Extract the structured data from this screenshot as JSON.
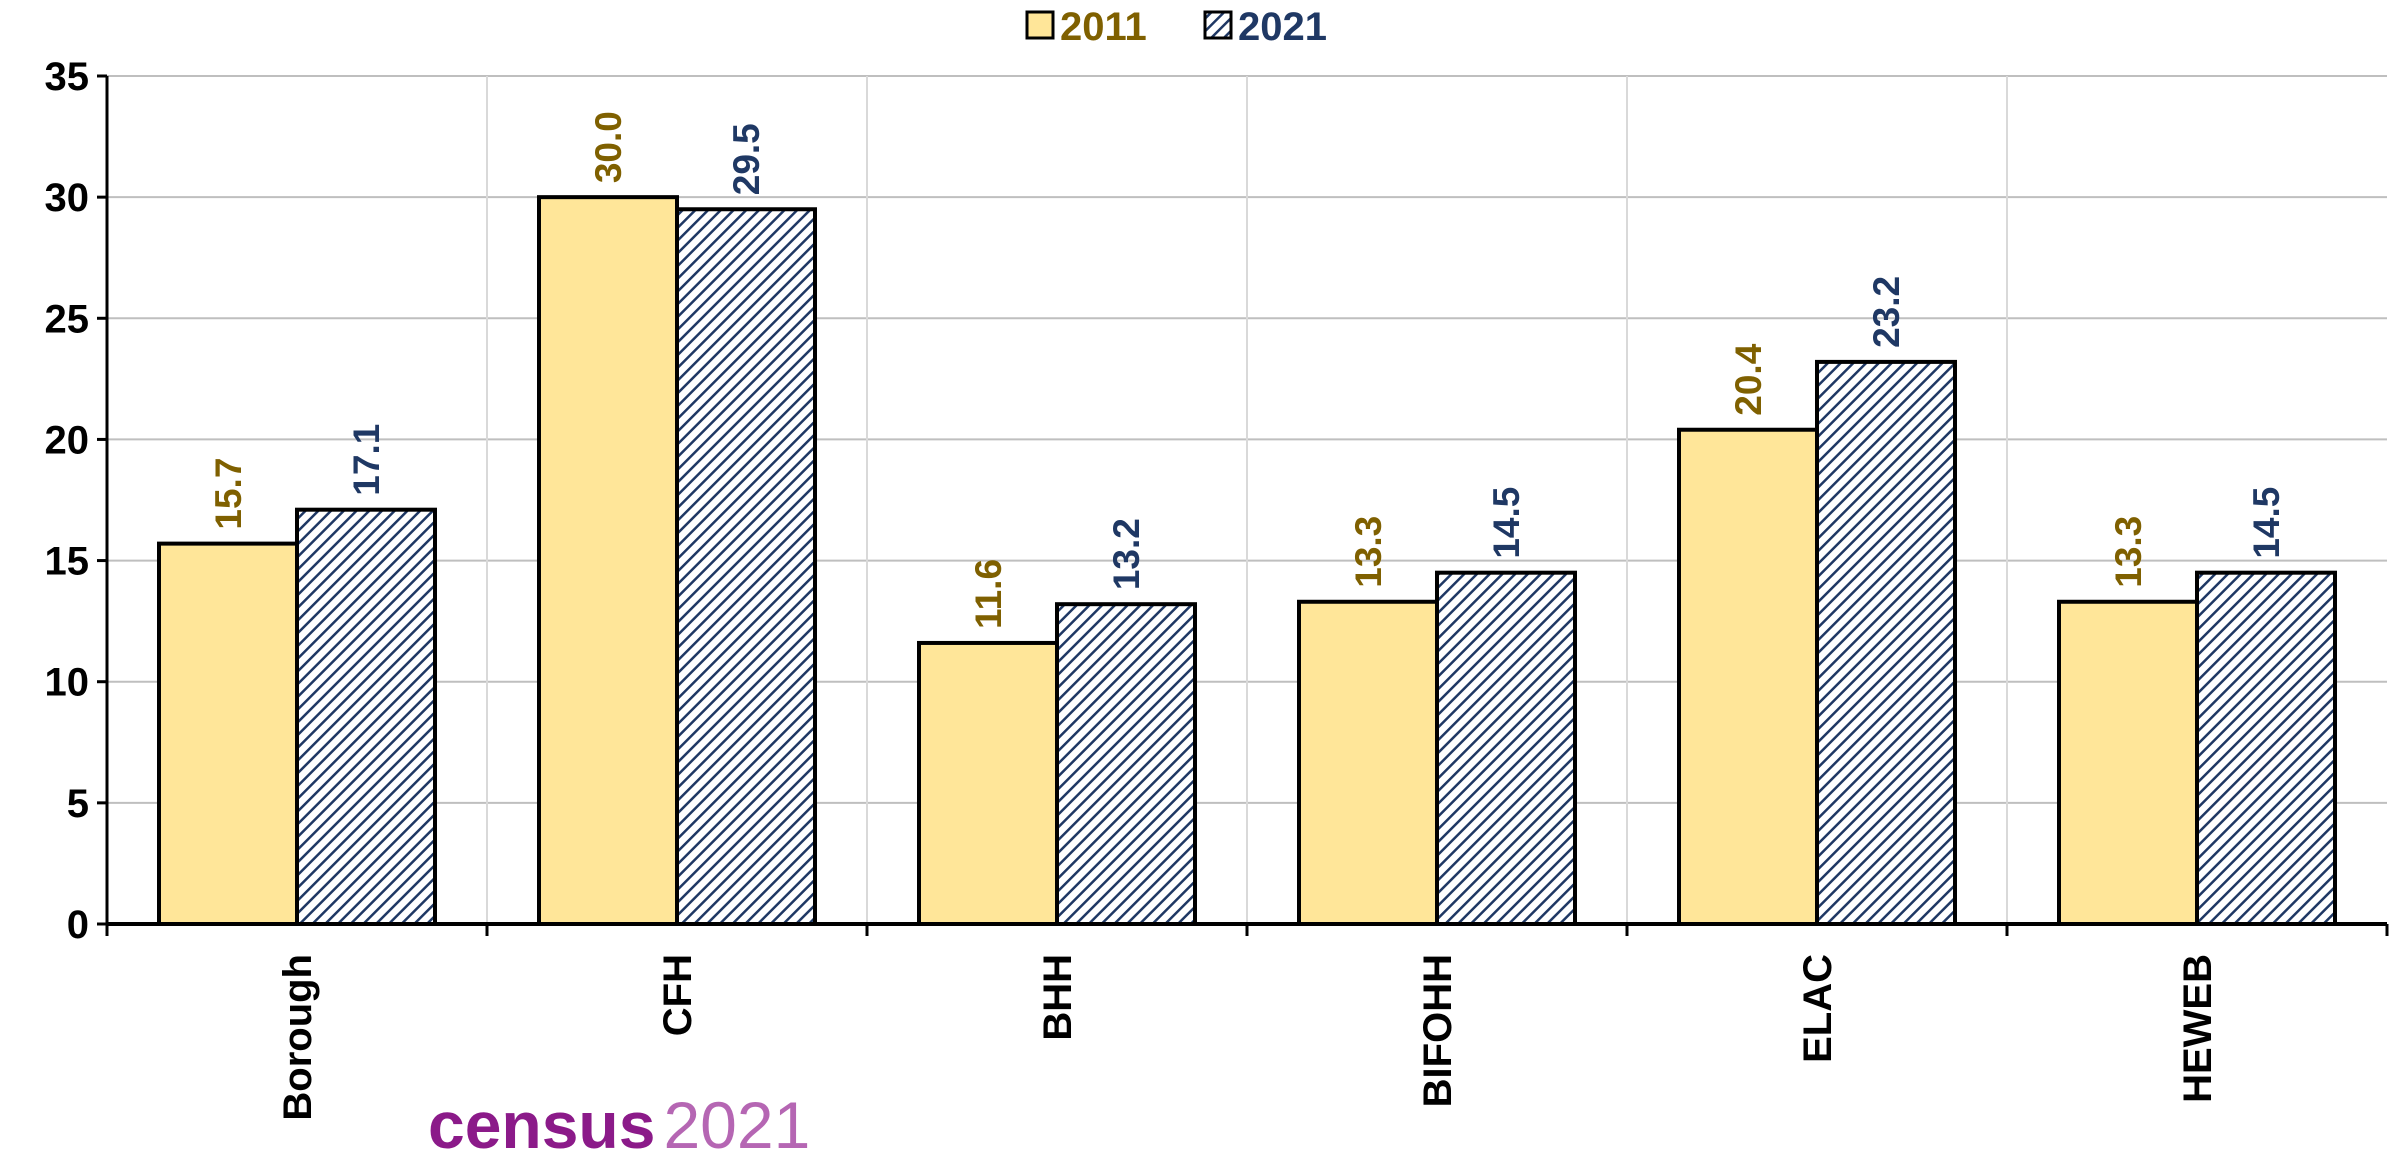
{
  "chart_data": {
    "type": "bar",
    "categories": [
      "Borough",
      "CFH",
      "BHH",
      "BIFOHH",
      "ELAC",
      "HEWEB"
    ],
    "series": [
      {
        "name": "2011",
        "color": "#FFE699",
        "label_color": "#7F6000",
        "values": [
          15.7,
          30.0,
          11.6,
          13.3,
          20.4,
          13.3
        ],
        "value_labels": [
          "15.7",
          "30.0",
          "11.6",
          "13.3",
          "20.4",
          "13.3"
        ]
      },
      {
        "name": "2021",
        "color": "#1F3864",
        "label_color": "#1F3864",
        "pattern": "hatch",
        "values": [
          17.1,
          29.5,
          13.2,
          14.5,
          23.2,
          14.5
        ]
      }
    ],
    "ylim": [
      0,
      35
    ],
    "yticks": [
      0,
      5,
      10,
      15,
      20,
      25,
      30,
      35
    ],
    "grid": true,
    "legend": "top"
  },
  "logo": {
    "word": "census",
    "year": "2021"
  }
}
